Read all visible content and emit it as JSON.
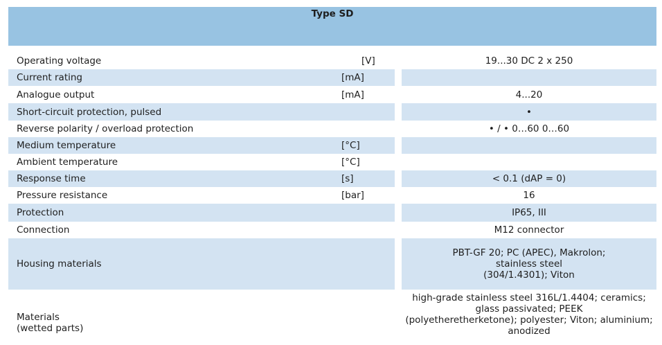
{
  "header": {
    "title": "Type  SD"
  },
  "table": {
    "rows": [
      {
        "label": "Operating voltage",
        "unit": "[V]",
        "value": [
          "19...30 DC 2 x 250"
        ]
      },
      {
        "label": "Current rating",
        "unit": "[mA]"
      },
      {
        "label": "Analogue output",
        "unit": "[mA]",
        "value": [
          "4...20"
        ]
      },
      {
        "label": "Short-circuit protection, pulsed",
        "value": [
          "•"
        ]
      },
      {
        "label": "Reverse polarity / overload protection",
        "value": [
          "• / • 0…60 0…60"
        ]
      },
      {
        "label": "Medium temperature",
        "unit": "[°C]"
      },
      {
        "label": "Ambient temperature",
        "unit": "[°C]"
      },
      {
        "label": "Response time",
        "unit": "[s]",
        "value": [
          "< 0.1 (dAP = 0)"
        ]
      },
      {
        "label": "Pressure resistance",
        "unit": "[bar]",
        "value": [
          "16"
        ]
      },
      {
        "label": "Protection",
        "value": [
          "IP65, III"
        ]
      },
      {
        "label": "Connection",
        "value": [
          "M12 connector"
        ]
      },
      {
        "label": "Housing materials",
        "value": [
          "PBT-GF 20; PC (APEC), Makrolon;",
          "stainless steel",
          "(304/1.4301); Viton"
        ]
      },
      {
        "label": [
          "Materials",
          "(wetted parts)"
        ],
        "value": [
          "high-grade stainless steel 316L/1.4404; ceramics;",
          "glass passivated; PEEK",
          "(polyetheretherketone); polyester; Viton; aluminium;",
          "anodized"
        ]
      }
    ]
  }
}
